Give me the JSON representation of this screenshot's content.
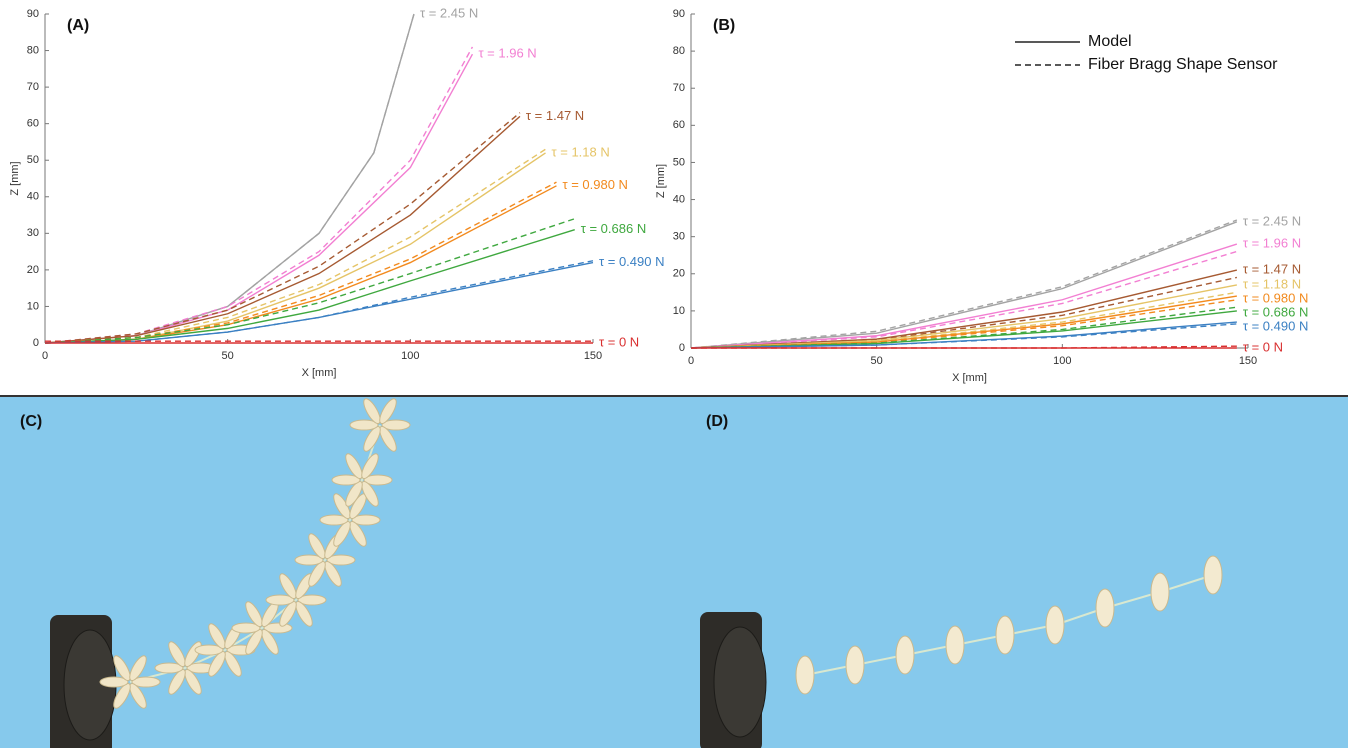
{
  "chart_data": [
    {
      "type": "line",
      "title": "(A)",
      "x_label": "X [mm]",
      "y_label": "Z [mm]",
      "xlim": [
        0,
        150
      ],
      "xticks": [
        0,
        50,
        100,
        150
      ],
      "ylim": [
        0,
        90
      ],
      "yticks": [
        0,
        10,
        20,
        30,
        40,
        50,
        60,
        70,
        80,
        90
      ],
      "series": [
        {
          "name": "τ = 2.45 N",
          "color": "#a3a3a3",
          "x": [
            0,
            25,
            50,
            75,
            90,
            101
          ],
          "values": [
            0,
            2,
            10,
            30,
            52,
            90
          ],
          "sensor_values": [
            0,
            2,
            10,
            30,
            52,
            90
          ]
        },
        {
          "name": "τ = 1.96 N",
          "color": "#f27fd2",
          "x": [
            0,
            25,
            50,
            75,
            100,
            117
          ],
          "values": [
            0,
            2,
            9,
            24,
            48,
            79
          ],
          "sensor_values": [
            0,
            2.5,
            10,
            25,
            50,
            81
          ]
        },
        {
          "name": "τ = 1.47 N",
          "color": "#a65a32",
          "x": [
            0,
            25,
            50,
            75,
            100,
            130
          ],
          "values": [
            0,
            2,
            8,
            19,
            35,
            62
          ],
          "sensor_values": [
            0,
            2.5,
            9,
            21,
            38,
            63
          ]
        },
        {
          "name": "τ = 1.18 N",
          "color": "#e5c467",
          "x": [
            0,
            25,
            50,
            75,
            100,
            137
          ],
          "values": [
            0,
            1,
            6,
            15,
            27,
            52
          ],
          "sensor_values": [
            0,
            1.5,
            7,
            16,
            29,
            53
          ]
        },
        {
          "name": "τ = 0.980 N",
          "color": "#f28a1e",
          "x": [
            0,
            25,
            50,
            75,
            100,
            140
          ],
          "values": [
            0,
            1,
            5,
            12,
            22,
            43
          ],
          "sensor_values": [
            0,
            1.5,
            5.5,
            13,
            23,
            44
          ]
        },
        {
          "name": "τ = 0.686 N",
          "color": "#3fa83f",
          "x": [
            0,
            25,
            50,
            75,
            100,
            145
          ],
          "values": [
            0,
            1,
            4,
            9,
            17,
            31
          ],
          "sensor_values": [
            0,
            1.5,
            5,
            11,
            19,
            34
          ]
        },
        {
          "name": "τ = 0.490 N",
          "color": "#3b80c3",
          "x": [
            0,
            25,
            50,
            75,
            100,
            150
          ],
          "values": [
            0,
            0.5,
            3,
            7,
            12,
            22
          ],
          "sensor_values": [
            0,
            0.5,
            3,
            7,
            12.5,
            22.5
          ]
        },
        {
          "name": "τ = 0 N",
          "color": "#d93030",
          "x": [
            0,
            150
          ],
          "values": [
            0,
            0
          ],
          "sensor_values": [
            0.5,
            0.5
          ]
        }
      ]
    },
    {
      "type": "line",
      "title": "(B)",
      "x_label": "X [mm]",
      "y_label": "Z [mm]",
      "xlim": [
        0,
        150
      ],
      "xticks": [
        0,
        50,
        100,
        150
      ],
      "ylim": [
        0,
        90
      ],
      "yticks": [
        0,
        10,
        20,
        30,
        40,
        50,
        60,
        70,
        80,
        90
      ],
      "legend": [
        {
          "name": "Model",
          "style": "solid"
        },
        {
          "name": "Fiber Bragg Shape Sensor",
          "style": "dashed"
        }
      ],
      "series": [
        {
          "name": "τ = 2.45 N",
          "color": "#a3a3a3",
          "x": [
            0,
            50,
            100,
            147
          ],
          "values": [
            0,
            4,
            16,
            34
          ],
          "sensor_values": [
            0,
            4.5,
            16.5,
            34.5
          ]
        },
        {
          "name": "τ = 1.96 N",
          "color": "#f27fd2",
          "x": [
            0,
            50,
            100,
            147
          ],
          "values": [
            0,
            3.3,
            13,
            28
          ],
          "sensor_values": [
            0,
            3,
            12,
            26
          ]
        },
        {
          "name": "τ = 1.47 N",
          "color": "#a65a32",
          "x": [
            0,
            50,
            100,
            147
          ],
          "values": [
            0,
            2.4,
            9.7,
            21
          ],
          "sensor_values": [
            0,
            2.2,
            8.8,
            19
          ]
        },
        {
          "name": "τ = 1.18 N",
          "color": "#e5c467",
          "x": [
            0,
            50,
            100,
            147
          ],
          "values": [
            0,
            2,
            7.9,
            17
          ],
          "sensor_values": [
            0,
            1.7,
            7,
            15
          ]
        },
        {
          "name": "τ = 0.980 N",
          "color": "#f28a1e",
          "x": [
            0,
            50,
            100,
            147
          ],
          "values": [
            0,
            1.6,
            6.5,
            14
          ],
          "sensor_values": [
            0,
            1.5,
            6,
            13
          ]
        },
        {
          "name": "τ = 0.686 N",
          "color": "#3fa83f",
          "x": [
            0,
            50,
            100,
            147
          ],
          "values": [
            0,
            1.2,
            4.6,
            10
          ],
          "sensor_values": [
            0,
            1.3,
            5,
            11
          ]
        },
        {
          "name": "τ = 0.490 N",
          "color": "#3b80c3",
          "x": [
            0,
            50,
            100,
            147
          ],
          "values": [
            0,
            0.8,
            3.2,
            7
          ],
          "sensor_values": [
            0,
            0.8,
            3,
            6.5
          ]
        },
        {
          "name": "τ = 0 N",
          "color": "#d93030",
          "x": [
            0,
            50,
            100,
            147
          ],
          "values": [
            0,
            0,
            0,
            0
          ],
          "sensor_values": [
            0,
            0,
            0,
            0.5
          ]
        }
      ]
    }
  ],
  "panels": [
    {
      "label": "(C)"
    },
    {
      "label": "(D)"
    }
  ]
}
